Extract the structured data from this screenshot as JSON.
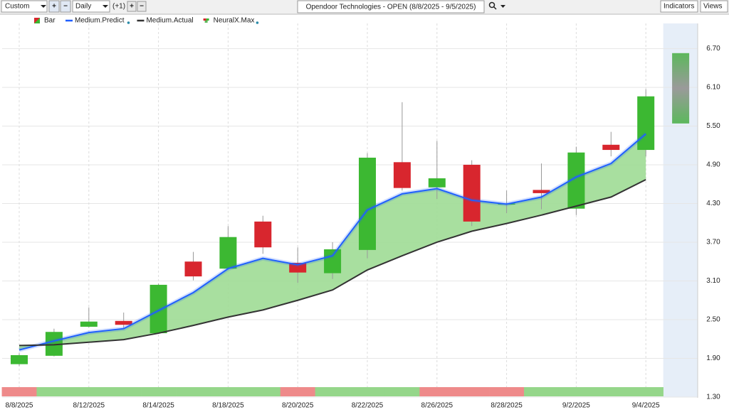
{
  "toolbar": {
    "range_mode": "Custom",
    "interval": "Daily",
    "step": "(+1)",
    "indicators": "Indicators",
    "views": "Views"
  },
  "chart_data": {
    "type": "candlestick",
    "title": "Opendoor Technologies - OPEN (8/8/2025 - 9/5/2025)",
    "categories": [
      "8/8/2025",
      null,
      "8/12/2025",
      null,
      "8/14/2025",
      null,
      "8/18/2025",
      null,
      "8/20/2025",
      null,
      "8/22/2025",
      null,
      "8/26/2025",
      null,
      "8/28/2025",
      null,
      "9/2/2025",
      null,
      "9/4/2025",
      null
    ],
    "candles": {
      "name": "Bar",
      "up_color": "#3cb832",
      "down_color": "#d8262e",
      "open": [
        1.81,
        1.94,
        2.39,
        2.48,
        2.29,
        3.4,
        3.29,
        4.02,
        3.38,
        3.22,
        3.58,
        4.94,
        4.55,
        4.9,
        4.29,
        4.51,
        4.22,
        5.21,
        5.13,
        null
      ],
      "high": [
        1.98,
        2.36,
        2.69,
        2.61,
        3.06,
        3.55,
        3.95,
        4.11,
        3.62,
        3.7,
        5.08,
        5.87,
        5.27,
        4.97,
        4.5,
        4.92,
        5.18,
        5.41,
        6.07,
        null
      ],
      "low": [
        1.78,
        1.93,
        2.38,
        2.36,
        2.28,
        3.11,
        3.27,
        3.52,
        3.07,
        3.13,
        3.45,
        4.5,
        4.37,
        3.95,
        4.15,
        4.21,
        4.12,
        5.03,
        5.03,
        null
      ],
      "close": [
        1.95,
        2.31,
        2.47,
        2.42,
        3.04,
        3.17,
        3.78,
        3.62,
        3.23,
        3.59,
        5.01,
        4.54,
        4.69,
        4.02,
        4.3,
        4.46,
        5.09,
        5.13,
        5.96,
        null
      ]
    },
    "series": [
      {
        "name": "Medium.Predict",
        "color": "#1f5fff",
        "values": [
          2.03,
          2.17,
          2.3,
          2.36,
          2.64,
          2.92,
          3.29,
          3.45,
          3.35,
          3.49,
          4.2,
          4.45,
          4.53,
          4.35,
          4.29,
          4.4,
          4.71,
          4.92,
          5.38,
          null
        ]
      },
      {
        "name": "Medium.Actual",
        "color": "#333333",
        "values": [
          2.1,
          2.11,
          2.15,
          2.19,
          2.29,
          2.41,
          2.54,
          2.65,
          2.8,
          2.96,
          3.27,
          3.49,
          3.7,
          3.87,
          3.99,
          4.12,
          4.26,
          4.4,
          4.67,
          null
        ]
      }
    ],
    "range_series": {
      "name": "NeuralX.Max",
      "color": "#5cb85c",
      "low": [
        null,
        null,
        null,
        null,
        null,
        null,
        null,
        null,
        null,
        null,
        null,
        null,
        null,
        null,
        null,
        null,
        null,
        null,
        null,
        5.54
      ],
      "high": [
        null,
        null,
        null,
        null,
        null,
        null,
        null,
        null,
        null,
        null,
        null,
        null,
        null,
        null,
        null,
        null,
        null,
        null,
        null,
        6.63
      ]
    },
    "signal": {
      "colors": [
        "#ee8a8a",
        "#95d68a",
        "#95d68a",
        "#95d68a",
        "#95d68a",
        "#95d68a",
        "#95d68a",
        "#95d68a",
        "#ee8a8a",
        "#95d68a",
        "#95d68a",
        "#95d68a",
        "#ee8a8a",
        "#ee8a8a",
        "#ee8a8a",
        "#95d68a",
        "#95d68a",
        "#95d68a",
        "#95d68a",
        null
      ]
    },
    "area_color": "#9fdc95",
    "ylim": [
      1.3,
      7.09
    ],
    "yticks": [
      {
        "value": 1.3,
        "label": "1.30"
      },
      {
        "value": 1.9,
        "label": "1.90"
      },
      {
        "value": 2.5,
        "label": "2.50"
      },
      {
        "value": 3.1,
        "label": "3.10"
      },
      {
        "value": 3.7,
        "label": "3.70"
      },
      {
        "value": 4.3,
        "label": "4.30"
      },
      {
        "value": 4.9,
        "label": "4.90"
      },
      {
        "value": 5.5,
        "label": "5.50"
      },
      {
        "value": 6.1,
        "label": "6.10"
      },
      {
        "value": 6.7,
        "label": "6.70"
      }
    ],
    "grid": true
  }
}
